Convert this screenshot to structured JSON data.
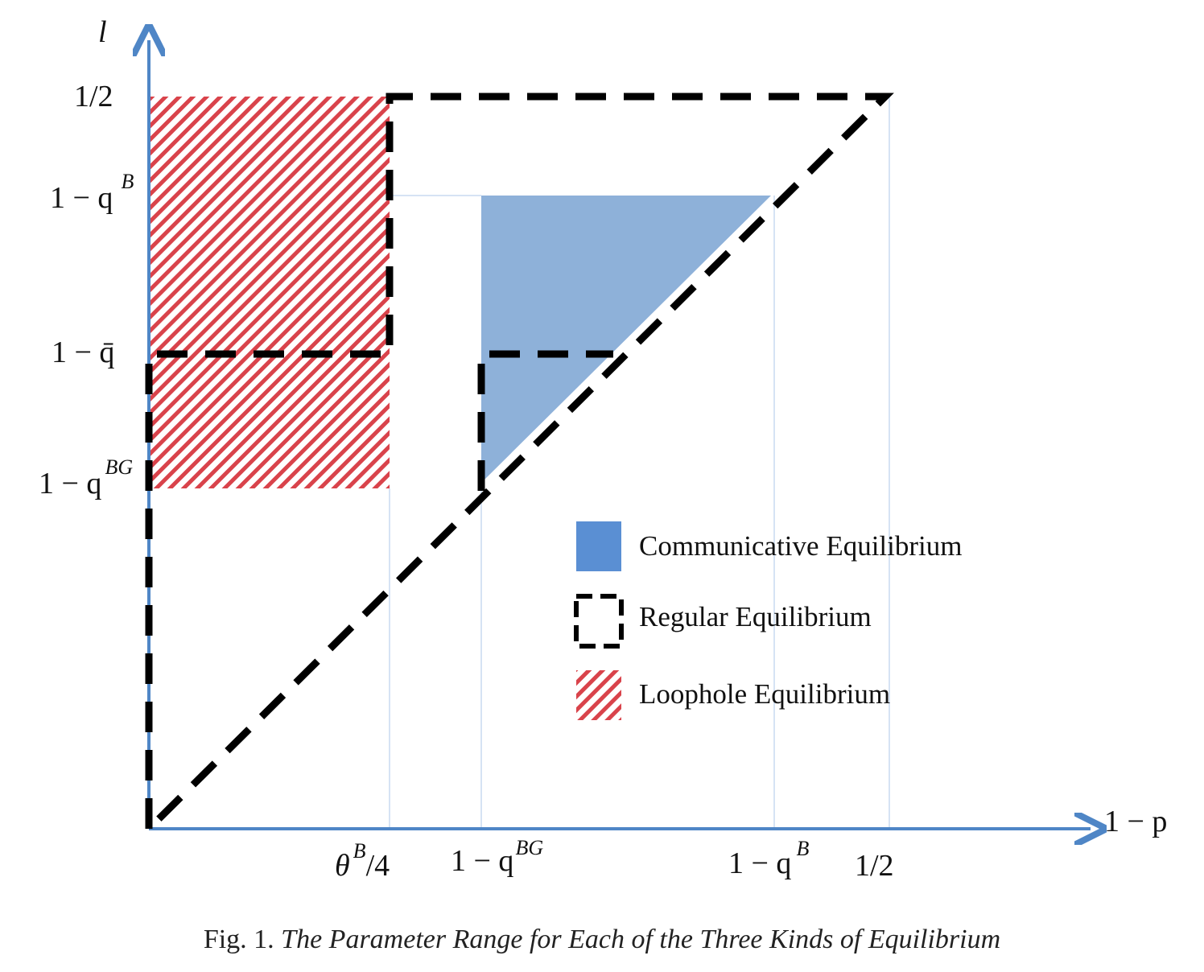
{
  "axes": {
    "y_label": "l",
    "x_label": "1 − p"
  },
  "y_ticks": [
    {
      "base": "1/2"
    },
    {
      "base": "1 − q",
      "sup": "B"
    },
    {
      "base": "1 − q̄"
    },
    {
      "base": "1 − q",
      "sup": "BG"
    }
  ],
  "x_ticks": [
    {
      "base": "θ",
      "sup": "B",
      "after": "/4"
    },
    {
      "base": "1 − q",
      "sup": "BG"
    },
    {
      "base": "1 − q",
      "sup": "B"
    },
    {
      "base": "1/2"
    }
  ],
  "legend": [
    {
      "label": "Communicative Equilibrium"
    },
    {
      "label": "Regular Equilibrium"
    },
    {
      "label": "Loophole Equilibrium"
    }
  ],
  "caption": {
    "label": "Fig. 1.",
    "text": "The Parameter Range for Each of the Three Kinds of Equilibrium"
  }
}
